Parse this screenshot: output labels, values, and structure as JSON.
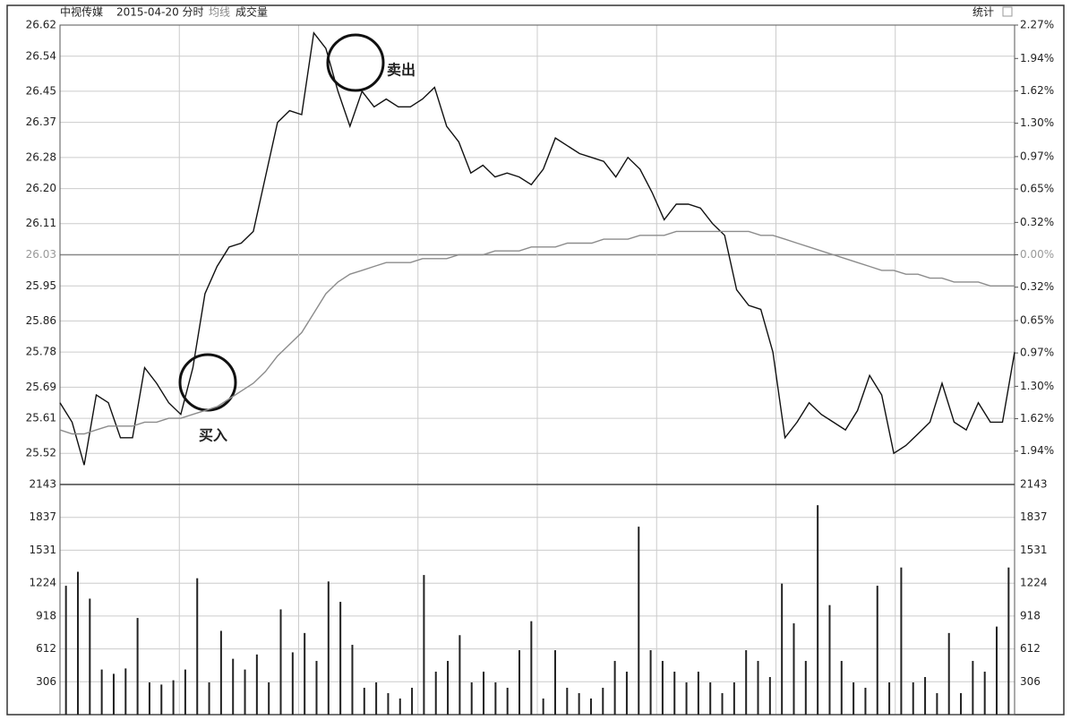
{
  "chart_data": [
    {
      "type": "line",
      "title": "中视传媒",
      "subtitle": "2015-04-20 分时",
      "stats_button": "统计",
      "series": [
        {
          "color": "#111111",
          "values": [
            25.65,
            25.6,
            25.49,
            25.67,
            25.65,
            25.56,
            25.56,
            25.74,
            25.7,
            25.65,
            25.62,
            25.74,
            25.93,
            26.0,
            26.05,
            26.06,
            26.09,
            26.23,
            26.37,
            26.4,
            26.39,
            26.6,
            26.56,
            26.45,
            26.36,
            26.45,
            26.41,
            26.43,
            26.41,
            26.41,
            26.43,
            26.46,
            26.36,
            26.32,
            26.24,
            26.26,
            26.23,
            26.24,
            26.23,
            26.21,
            26.25,
            26.33,
            26.31,
            26.29,
            26.28,
            26.27,
            26.23,
            26.28,
            26.25,
            26.19,
            26.12,
            26.16,
            26.16,
            26.15,
            26.11,
            26.08,
            25.94,
            25.9,
            25.89,
            25.78,
            25.56,
            25.6,
            25.65,
            25.62,
            25.6,
            25.58,
            25.63,
            25.72,
            25.67,
            25.52,
            25.54,
            25.57,
            25.6,
            25.7,
            25.6,
            25.58,
            25.65,
            25.6,
            25.6,
            25.78
          ]
        },
        {
          "name": "均线",
          "color": "#8c8c8c",
          "values": [
            25.58,
            25.57,
            25.57,
            25.58,
            25.59,
            25.59,
            25.59,
            25.6,
            25.6,
            25.61,
            25.61,
            25.62,
            25.63,
            25.64,
            25.66,
            25.68,
            25.7,
            25.73,
            25.77,
            25.8,
            25.83,
            25.88,
            25.93,
            25.96,
            25.98,
            25.99,
            26.0,
            26.01,
            26.01,
            26.01,
            26.02,
            26.02,
            26.02,
            26.03,
            26.03,
            26.03,
            26.04,
            26.04,
            26.04,
            26.05,
            26.05,
            26.05,
            26.06,
            26.06,
            26.06,
            26.07,
            26.07,
            26.07,
            26.08,
            26.08,
            26.08,
            26.09,
            26.09,
            26.09,
            26.09,
            26.09,
            26.09,
            26.09,
            26.08,
            26.08,
            26.07,
            26.06,
            26.05,
            26.04,
            26.03,
            26.02,
            26.01,
            26.0,
            25.99,
            25.99,
            25.98,
            25.98,
            25.97,
            25.97,
            25.96,
            25.96,
            25.96,
            25.95,
            25.95,
            25.95
          ]
        }
      ],
      "ylim": [
        25.44,
        26.62
      ],
      "yticks": [
        26.62,
        26.54,
        26.45,
        26.37,
        26.28,
        {
          "value": 26.2,
          "label": "26.20"
        },
        26.11,
        26.03,
        25.95,
        25.86,
        25.78,
        25.69,
        25.61,
        25.52
      ],
      "y2lim": [
        -2.27,
        2.27
      ],
      "y2ticks": [
        {
          "value": 2.27,
          "label": "2.27%"
        },
        {
          "value": 1.94,
          "label": "1.94%"
        },
        {
          "value": 1.62,
          "label": "1.62%"
        },
        {
          "value": 1.3,
          "label": "1.30%"
        },
        {
          "value": 0.97,
          "label": "0.97%"
        },
        {
          "value": 0.65,
          "label": "0.65%"
        },
        {
          "value": 0.32,
          "label": "0.32%"
        },
        {
          "value": 0,
          "label": "0.00%"
        },
        {
          "value": -0.32,
          "label": "0.32%"
        },
        {
          "value": -0.65,
          "label": "0.65%"
        },
        {
          "value": -0.97,
          "label": "0.97%"
        },
        {
          "value": -1.3,
          "label": "1.30%"
        },
        {
          "value": -1.62,
          "label": "1.62%"
        },
        {
          "value": -1.94,
          "label": "1.94%"
        }
      ],
      "grid": true,
      "annotations": [
        {
          "text": "卖出"
        },
        {
          "text": "买入"
        }
      ]
    },
    {
      "type": "bar",
      "series": [
        {
          "name": "成交量",
          "color": "#222222",
          "values": [
            1200,
            1330,
            1080,
            420,
            380,
            430,
            900,
            300,
            280,
            320,
            420,
            1270,
            300,
            780,
            520,
            420,
            560,
            300,
            980,
            580,
            760,
            500,
            1240,
            1050,
            650,
            250,
            300,
            200,
            150,
            250,
            1300,
            400,
            500,
            740,
            300,
            400,
            300,
            250,
            600,
            870,
            150,
            600,
            250,
            200,
            150,
            250,
            500,
            400,
            1750,
            600,
            500,
            400,
            300,
            400,
            300,
            200,
            300,
            600,
            500,
            350,
            1220,
            850,
            500,
            1950,
            1020,
            500,
            300,
            250,
            1200,
            300,
            1370,
            300,
            350,
            200,
            760,
            200,
            500,
            400,
            820,
            1370
          ]
        }
      ],
      "ylim": [
        0,
        2143
      ],
      "yticks": [
        306,
        612,
        918,
        1224,
        1531,
        1837,
        2143
      ],
      "grid": true
    }
  ]
}
